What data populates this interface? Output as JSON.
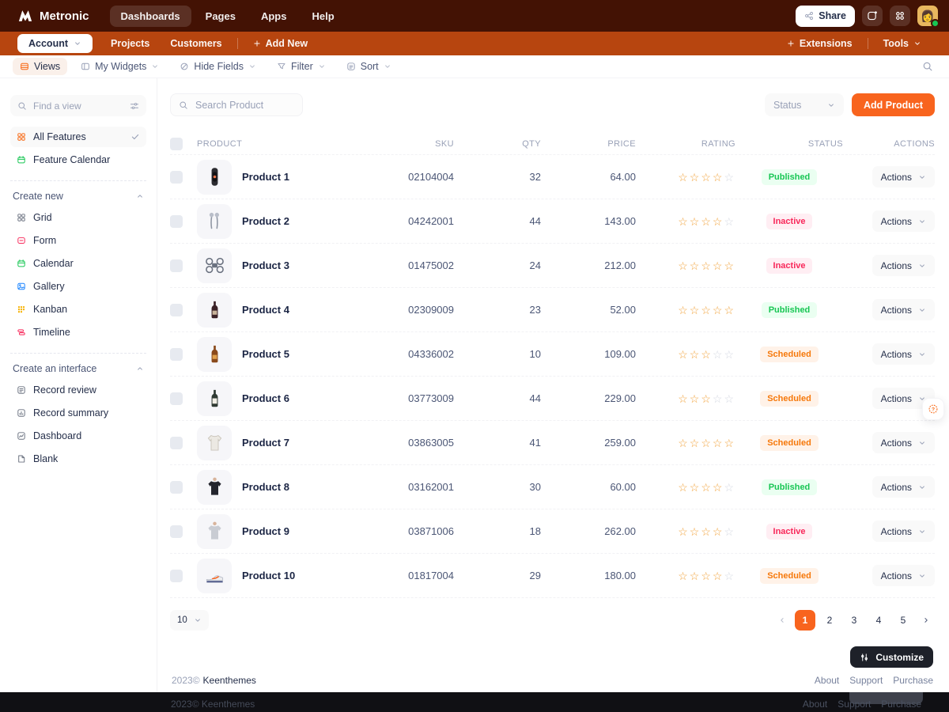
{
  "header": {
    "brand": "Metronic",
    "nav": [
      {
        "label": "Dashboards",
        "active": true
      },
      {
        "label": "Pages",
        "active": false
      },
      {
        "label": "Apps",
        "active": false
      },
      {
        "label": "Help",
        "active": false
      }
    ],
    "share": "Share"
  },
  "tabbar": {
    "account": "Account",
    "tabs": [
      "Projects",
      "Customers"
    ],
    "add_new": "Add New",
    "extensions": "Extensions",
    "tools": "Tools"
  },
  "toolbar": {
    "views": "Views",
    "my_widgets": "My Widgets",
    "hide_fields": "Hide Fields",
    "filter": "Filter",
    "sort": "Sort"
  },
  "sidebar": {
    "find_placeholder": "Find a view",
    "views": [
      {
        "label": "All Features",
        "icon": "grid4",
        "color": "#F8650E",
        "checked": true
      },
      {
        "label": "Feature Calendar",
        "icon": "calendar",
        "color": "#17C653",
        "checked": false
      }
    ],
    "create_new": {
      "title": "Create new",
      "items": [
        {
          "label": "Grid",
          "icon": "grid4",
          "color": "#6B7280"
        },
        {
          "label": "Form",
          "icon": "form",
          "color": "#F8285A"
        },
        {
          "label": "Calendar",
          "icon": "calendar",
          "color": "#17C653"
        },
        {
          "label": "Gallery",
          "icon": "gallery",
          "color": "#1B84FF"
        },
        {
          "label": "Kanban",
          "icon": "kanban",
          "color": "#F6B100"
        },
        {
          "label": "Timeline",
          "icon": "timeline",
          "color": "#F8285A"
        }
      ]
    },
    "create_interface": {
      "title": "Create an interface",
      "items": [
        {
          "label": "Record review",
          "icon": "doclines",
          "color": "#6B7280"
        },
        {
          "label": "Record summary",
          "icon": "chartbar",
          "color": "#6B7280"
        },
        {
          "label": "Dashboard",
          "icon": "chartline",
          "color": "#6B7280"
        },
        {
          "label": "Blank",
          "icon": "blank",
          "color": "#6B7280"
        }
      ]
    }
  },
  "main": {
    "search_placeholder": "Search Product",
    "status_filter": "Status",
    "add_product": "Add Product",
    "table": {
      "headers": [
        "PRODUCT",
        "SKU",
        "QTY",
        "PRICE",
        "RATING",
        "STATUS",
        "ACTIONS"
      ],
      "actions_label": "Actions",
      "rows": [
        {
          "name": "Product 1",
          "thumb": "watch",
          "sku": "02104004",
          "qty": "32",
          "price": "64.00",
          "rating": 4,
          "status": "Published"
        },
        {
          "name": "Product 2",
          "thumb": "earbuds",
          "sku": "04242001",
          "qty": "44",
          "price": "143.00",
          "rating": 4,
          "status": "Inactive"
        },
        {
          "name": "Product 3",
          "thumb": "drone",
          "sku": "01475002",
          "qty": "24",
          "price": "212.00",
          "rating": 5,
          "status": "Inactive"
        },
        {
          "name": "Product 4",
          "thumb": "bottle-dark",
          "sku": "02309009",
          "qty": "23",
          "price": "52.00",
          "rating": 5,
          "status": "Published"
        },
        {
          "name": "Product 5",
          "thumb": "bottle-amber",
          "sku": "04336002",
          "qty": "10",
          "price": "109.00",
          "rating": 3,
          "status": "Scheduled"
        },
        {
          "name": "Product 6",
          "thumb": "bottle-light",
          "sku": "03773009",
          "qty": "44",
          "price": "229.00",
          "rating": 3,
          "status": "Scheduled"
        },
        {
          "name": "Product 7",
          "thumb": "shirt",
          "sku": "03863005",
          "qty": "41",
          "price": "259.00",
          "rating": 5,
          "status": "Scheduled"
        },
        {
          "name": "Product 8",
          "thumb": "jacket",
          "sku": "03162001",
          "qty": "30",
          "price": "60.00",
          "rating": 4,
          "status": "Published"
        },
        {
          "name": "Product 9",
          "thumb": "hoodie",
          "sku": "03871006",
          "qty": "18",
          "price": "262.00",
          "rating": 4,
          "status": "Inactive"
        },
        {
          "name": "Product 10",
          "thumb": "sneaker",
          "sku": "01817004",
          "qty": "29",
          "price": "180.00",
          "rating": 4,
          "status": "Scheduled"
        }
      ],
      "status_styles": {
        "Published": {
          "bg": "#EAFFF1",
          "text": "#17C653"
        },
        "Inactive": {
          "bg": "#FFEEF3",
          "text": "#F8285A"
        },
        "Scheduled": {
          "bg": "#FFF2E8",
          "text": "#F6780A"
        }
      }
    },
    "pagination": {
      "page_size": "10",
      "pages": [
        "1",
        "2",
        "3",
        "4",
        "5"
      ],
      "active": "1"
    }
  },
  "footer": {
    "year": "2023©",
    "company": "Keenthemes",
    "links": [
      "About",
      "Support",
      "Purchase"
    ],
    "customize": "Customize"
  },
  "bottom_strip": {
    "year": "2023©",
    "company": "Keenthemes",
    "links": [
      "About",
      "Support",
      "Purchase"
    ]
  },
  "colors": {
    "header_bg": "#431204",
    "bar_bg": "#B7450F",
    "accent": "#F8641E",
    "star": "#F1A33C",
    "star_empty": "#D5D9E2",
    "success": "#17C653",
    "danger": "#F8285A",
    "warning": "#F6780A"
  }
}
